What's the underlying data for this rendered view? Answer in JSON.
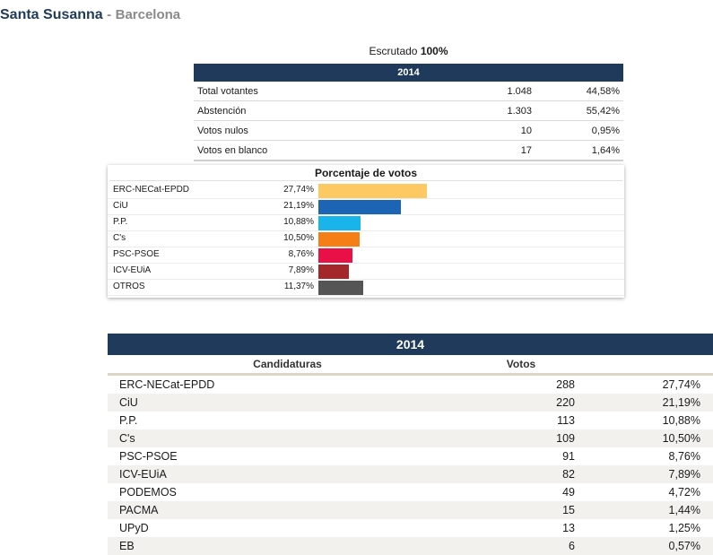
{
  "header": {
    "place": "Santa Susanna",
    "separator": "-",
    "province": "Barcelona"
  },
  "escrutado": {
    "label": "Escrutado",
    "value": "100%"
  },
  "summary": {
    "year": "2014",
    "rows": [
      {
        "label": "Total votantes",
        "count": "1.048",
        "pct": "44,58%"
      },
      {
        "label": "Abstención",
        "count": "1.303",
        "pct": "55,42%"
      },
      {
        "label": "Votos nulos",
        "count": "10",
        "pct": "0,95%"
      },
      {
        "label": "Votos en blanco",
        "count": "17",
        "pct": "1,64%"
      }
    ]
  },
  "chart_data": {
    "type": "bar",
    "title": "Porcentaje de votos",
    "categories": [
      "ERC-NECat-EPDD",
      "CiU",
      "P.P.",
      "C's",
      "PSC-PSOE",
      "ICV-EUiA",
      "OTROS"
    ],
    "values": [
      27.74,
      21.19,
      10.88,
      10.5,
      8.76,
      7.89,
      11.37
    ],
    "labels": [
      "27,74%",
      "21,19%",
      "10,88%",
      "10,50%",
      "8,76%",
      "7,89%",
      "11,37%"
    ],
    "colors": [
      "#fdc963",
      "#1c64b4",
      "#18b4ea",
      "#f57f16",
      "#e81046",
      "#a3272b",
      "#555555"
    ]
  },
  "results": {
    "year": "2014",
    "col_candidaturas": "Candidaturas",
    "col_votos": "Votos",
    "rows": [
      {
        "name": "ERC-NECat-EPDD",
        "votes": "288",
        "pct": "27,74%"
      },
      {
        "name": "CiU",
        "votes": "220",
        "pct": "21,19%"
      },
      {
        "name": "P.P.",
        "votes": "113",
        "pct": "10,88%"
      },
      {
        "name": "C's",
        "votes": "109",
        "pct": "10,50%"
      },
      {
        "name": "PSC-PSOE",
        "votes": "91",
        "pct": "8,76%"
      },
      {
        "name": "ICV-EUiA",
        "votes": "82",
        "pct": "7,89%"
      },
      {
        "name": "PODEMOS",
        "votes": "49",
        "pct": "4,72%"
      },
      {
        "name": "PACMA",
        "votes": "15",
        "pct": "1,44%"
      },
      {
        "name": "UPyD",
        "votes": "13",
        "pct": "1,25%"
      },
      {
        "name": "EB",
        "votes": "6",
        "pct": "0,57%"
      }
    ]
  }
}
